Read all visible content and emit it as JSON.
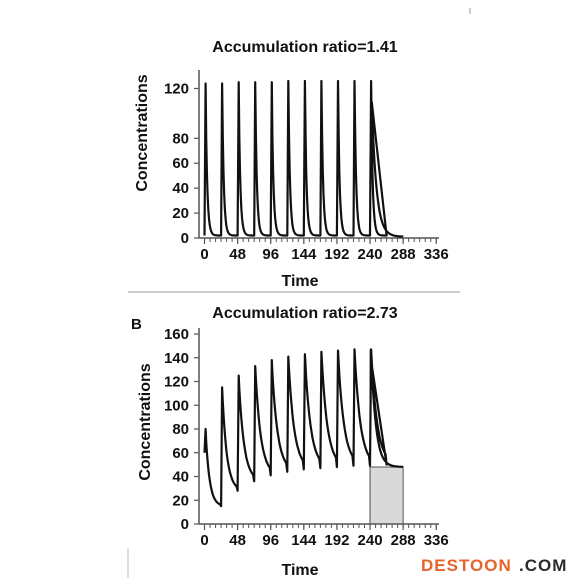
{
  "watermark": {
    "brand": "DESTOON",
    "suffix": ".COM"
  },
  "colors": {
    "line": "#111111",
    "axis": "#555555",
    "shade": "#d9d9d9",
    "divider": "#9a9a9a",
    "watermark_accent": "#e8632b"
  },
  "chart_data": [
    {
      "type": "line",
      "panel_label": "",
      "title": "Accumulation ratio=1.41",
      "xlabel": "Time",
      "ylabel": "Concentrations",
      "xticks": [
        0,
        48,
        96,
        144,
        192,
        240,
        288,
        336
      ],
      "yticks": [
        0,
        20,
        40,
        60,
        80,
        120
      ],
      "xlim": [
        -8,
        340
      ],
      "ylim": [
        0,
        130
      ],
      "dosing_interval": 24,
      "dose_times": [
        0,
        24,
        48,
        72,
        96,
        120,
        144,
        168,
        192,
        216,
        240
      ],
      "series": [
        {
          "peaks": [
            124,
            124,
            125,
            125,
            125,
            126,
            126,
            126,
            126,
            126,
            126
          ],
          "troughs": [
            2,
            2,
            2,
            2,
            2,
            2,
            2,
            2,
            2,
            2,
            2
          ],
          "tail_end": [
            288,
            1
          ]
        }
      ],
      "shaded_window": null
    },
    {
      "type": "line",
      "panel_label": "B",
      "title": "Accumulation ratio=2.73",
      "xlabel": "Time",
      "ylabel": "Concentrations",
      "xticks": [
        0,
        48,
        96,
        144,
        192,
        240,
        288,
        336
      ],
      "yticks": [
        0,
        20,
        40,
        60,
        80,
        100,
        120,
        140,
        160
      ],
      "xlim": [
        -8,
        340
      ],
      "ylim": [
        0,
        160
      ],
      "dosing_interval": 24,
      "dose_times": [
        0,
        24,
        48,
        72,
        96,
        120,
        144,
        168,
        192,
        216,
        240
      ],
      "series": [
        {
          "peaks": [
            80,
            115,
            125,
            133,
            138,
            141,
            143,
            145,
            146,
            147,
            147
          ],
          "troughs": [
            15,
            28,
            36,
            41,
            44,
            46,
            47,
            48,
            49,
            49,
            50
          ],
          "tail_end": [
            288,
            48
          ]
        }
      ],
      "shaded_window": [
        240,
        288
      ]
    }
  ]
}
